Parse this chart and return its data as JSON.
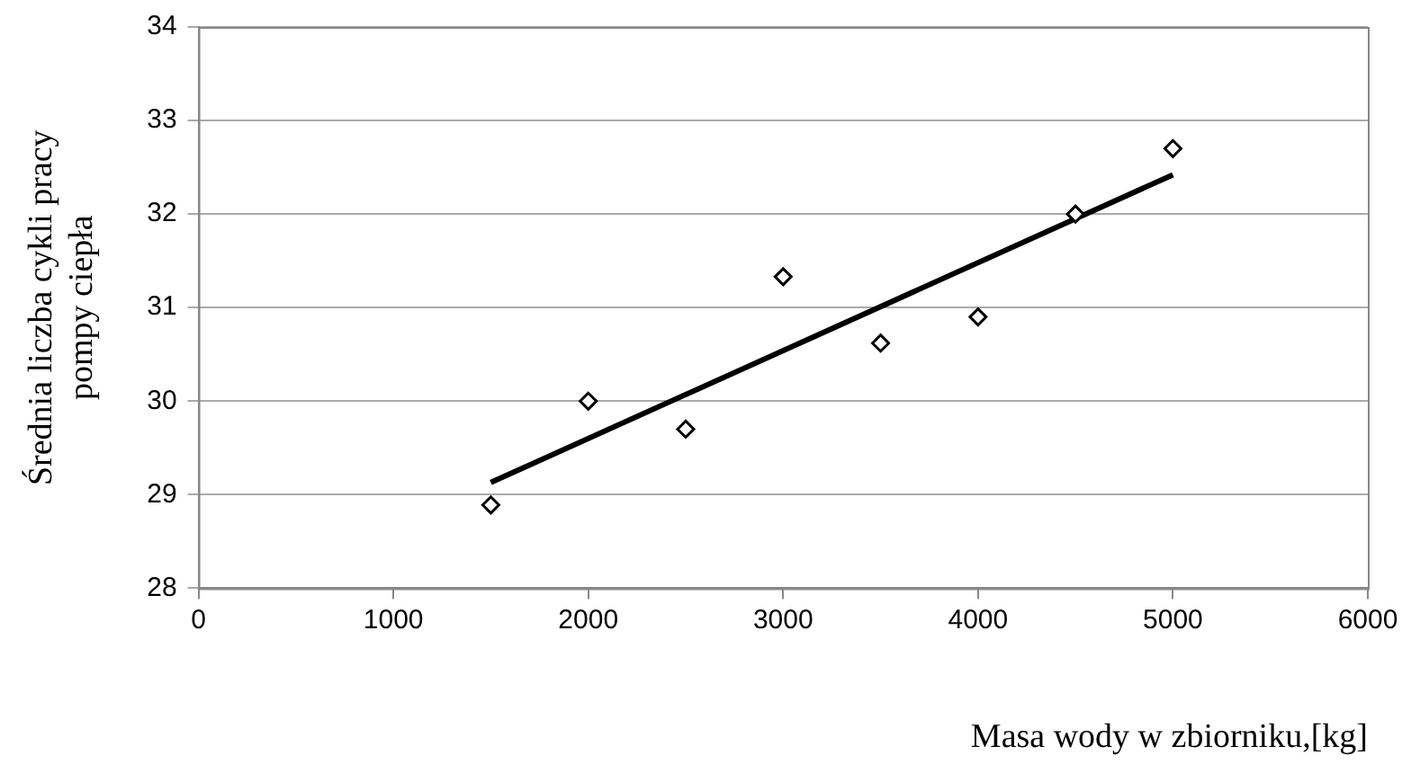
{
  "chart_data": {
    "type": "scatter",
    "xlabel": "Masa wody w zbiorniku,[kg]",
    "ylabel": "Średnia liczba cykli pracy\npompy ciepła",
    "xlim": [
      0,
      6000
    ],
    "xticks": [
      0,
      1000,
      2000,
      3000,
      4000,
      5000,
      6000
    ],
    "ylim": [
      28,
      34
    ],
    "yticks": [
      28,
      29,
      30,
      31,
      32,
      33,
      34
    ],
    "grid": "y",
    "marker": "diamond",
    "legend": false,
    "series": [
      {
        "color": "#000000",
        "x": [
          1500,
          2000,
          2500,
          3000,
          3500,
          4000,
          4500,
          5000
        ],
        "values": [
          28.89,
          30.0,
          29.7,
          31.33,
          30.62,
          30.9,
          32.0,
          32.7
        ]
      },
      {
        "type": "line",
        "color": "#000000",
        "marker": "none",
        "line_style": "solid",
        "x": [
          1500,
          5000
        ],
        "values": [
          29.13,
          32.42
        ]
      }
    ]
  }
}
